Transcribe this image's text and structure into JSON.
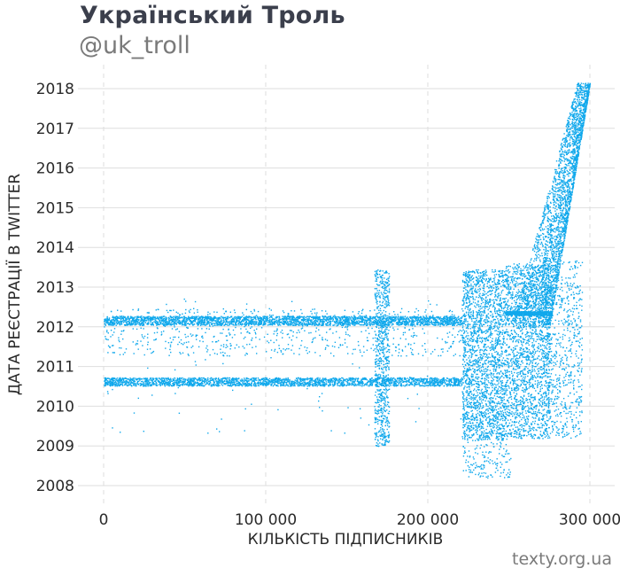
{
  "header": {
    "title": "Український Троль",
    "subtitle": "@uk_troll"
  },
  "footer": {
    "source": "texty.org.ua"
  },
  "colors": {
    "points": "#10a8ec",
    "grid": "#dedede",
    "text": "#2a2a2a"
  },
  "chart_data": {
    "type": "scatter",
    "title": "Український Троль",
    "subtitle": "@uk_troll",
    "xlabel": "КІЛЬКІСТЬ ПІДПИСНИКІВ",
    "ylabel": "ДАТА РЕЄСТРАЦІЇ В TWITTER",
    "xlim": [
      -5000,
      312000
    ],
    "ylim": [
      2007.55,
      2018.65
    ],
    "x_ticks": [
      0,
      100000,
      200000,
      300000
    ],
    "x_tick_labels": [
      "0",
      "100 000",
      "200 000",
      "300 000"
    ],
    "y_ticks": [
      2008,
      2009,
      2010,
      2011,
      2012,
      2013,
      2014,
      2015,
      2016,
      2017,
      2018
    ],
    "y_tick_labels": [
      "2008",
      "2009",
      "2010",
      "2011",
      "2012",
      "2013",
      "2014",
      "2015",
      "2016",
      "2017",
      "2018"
    ],
    "grid": "horizontal solid, vertical dashed",
    "series": [
      {
        "description_ranges": [
          {
            "x": [
              0,
              221000
            ],
            "y": [
              2012.05,
              2012.28
            ],
            "density": "dense band"
          },
          {
            "x": [
              0,
              221000
            ],
            "y": [
              2010.52,
              2010.73
            ],
            "density": "dense band"
          },
          {
            "x": [
              0,
              221000
            ],
            "y": [
              2011.25,
              2012.45
            ],
            "density": "sparse"
          },
          {
            "x": [
              167000,
              176000
            ],
            "y": [
              2009.0,
              2013.45
            ],
            "density": "dense column"
          },
          {
            "x": [
              221000,
              248000
            ],
            "y": [
              2009.15,
              2013.45
            ],
            "density": "dense block"
          },
          {
            "x": [
              248000,
              275000
            ],
            "y": [
              2009.2,
              2013.6
            ],
            "density": "dense block"
          },
          {
            "x": [
              270000,
              300000
            ],
            "y": [
              2012.0,
              2018.15
            ],
            "density": "rising front"
          }
        ]
      }
    ]
  }
}
